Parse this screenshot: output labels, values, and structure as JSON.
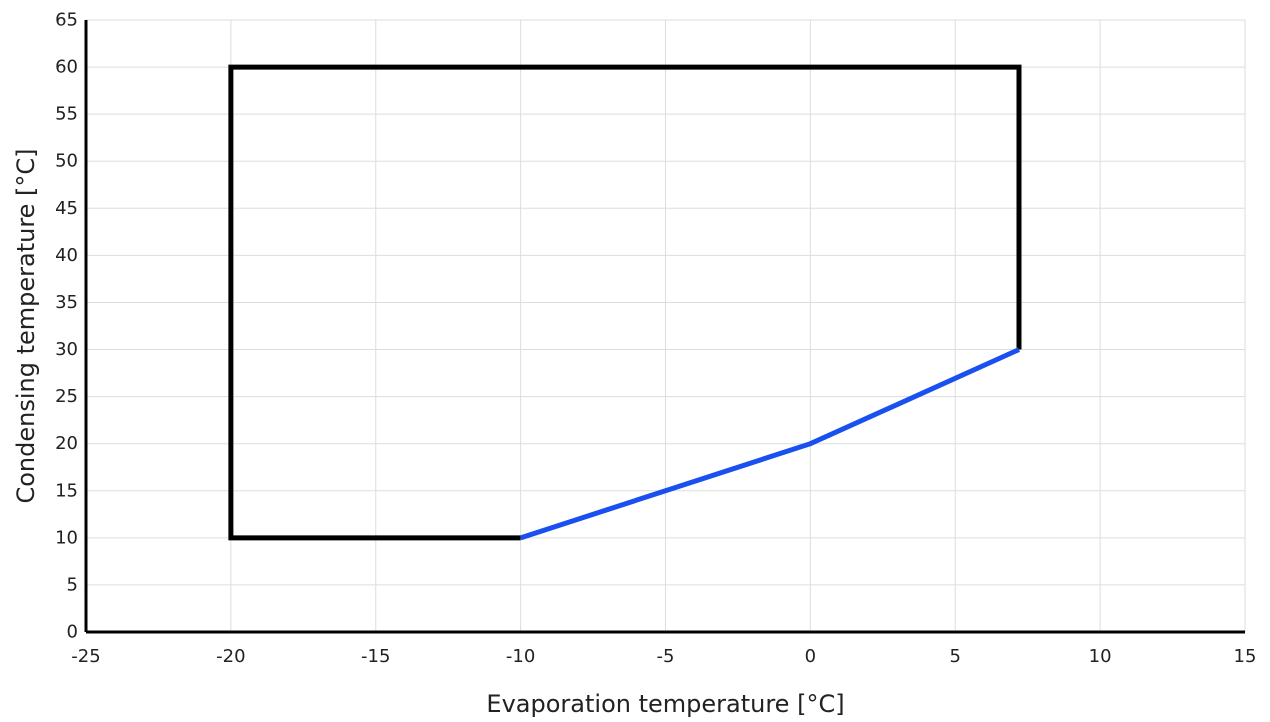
{
  "chart_data": {
    "type": "line",
    "title": "",
    "xlabel": "Evaporation temperature [°C]",
    "ylabel": "Condensing temperature [°C]",
    "xlim": [
      -25,
      15
    ],
    "ylim": [
      0,
      65
    ],
    "x_ticks": [
      -25,
      -20,
      -15,
      -10,
      -5,
      0,
      5,
      10,
      15
    ],
    "y_ticks": [
      0,
      5,
      10,
      15,
      20,
      25,
      30,
      35,
      40,
      45,
      50,
      55,
      60,
      65
    ],
    "grid": true,
    "legend": "none",
    "series": [
      {
        "color": "#000000",
        "x": [
          -10,
          -20,
          -20,
          7.2,
          7.2
        ],
        "y": [
          10,
          10,
          60,
          60,
          30
        ]
      },
      {
        "color": "#1a4ff0",
        "x": [
          -10,
          0,
          7.2
        ],
        "y": [
          10,
          20,
          30
        ]
      }
    ]
  }
}
